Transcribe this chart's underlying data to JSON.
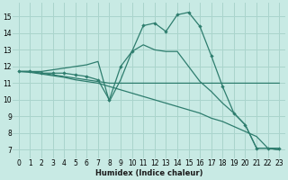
{
  "xlabel": "Humidex (Indice chaleur)",
  "xlim": [
    -0.5,
    23.5
  ],
  "ylim": [
    6.5,
    15.8
  ],
  "yticks": [
    7,
    8,
    9,
    10,
    11,
    12,
    13,
    14,
    15
  ],
  "xticks": [
    0,
    1,
    2,
    3,
    4,
    5,
    6,
    7,
    8,
    9,
    10,
    11,
    12,
    13,
    14,
    15,
    16,
    17,
    18,
    19,
    20,
    21,
    22,
    23
  ],
  "bg_color": "#c8eae4",
  "grid_color": "#aad4cc",
  "line_color": "#2e7d6e",
  "lines": [
    {
      "x": [
        0,
        1,
        2,
        3,
        4,
        5,
        6,
        7,
        8,
        9,
        10,
        11,
        12,
        13,
        14,
        15,
        16,
        17,
        18,
        19,
        20,
        21,
        22,
        23
      ],
      "y": [
        11.7,
        11.7,
        11.6,
        11.6,
        11.6,
        11.5,
        11.4,
        11.2,
        10.0,
        12.0,
        12.9,
        14.45,
        14.6,
        14.1,
        15.1,
        15.25,
        14.4,
        12.65,
        10.8,
        9.2,
        8.5,
        7.1,
        7.1,
        7.1
      ],
      "marker": true
    },
    {
      "x": [
        0,
        1,
        2,
        3,
        4,
        5,
        6,
        7,
        8,
        9,
        10,
        11,
        12,
        13,
        14,
        15,
        16,
        17,
        18,
        19,
        20,
        21,
        22,
        23
      ],
      "y": [
        11.7,
        11.7,
        11.6,
        11.5,
        11.4,
        11.3,
        11.2,
        11.1,
        11.0,
        11.0,
        11.0,
        11.0,
        11.0,
        11.0,
        11.0,
        11.0,
        11.0,
        11.0,
        11.0,
        11.0,
        11.0,
        11.0,
        11.0,
        11.0
      ],
      "marker": false
    },
    {
      "x": [
        0,
        1,
        2,
        3,
        4,
        5,
        6,
        7,
        8,
        9,
        10,
        11,
        12,
        13,
        14,
        15,
        16,
        17,
        18,
        19,
        20,
        21,
        22,
        23
      ],
      "y": [
        11.7,
        11.65,
        11.55,
        11.45,
        11.35,
        11.2,
        11.1,
        11.0,
        10.8,
        10.6,
        10.4,
        10.2,
        10.0,
        9.8,
        9.6,
        9.4,
        9.2,
        8.9,
        8.7,
        8.4,
        8.1,
        7.8,
        7.1,
        7.0
      ],
      "marker": false
    },
    {
      "x": [
        0,
        1,
        2,
        3,
        4,
        5,
        6,
        7,
        8,
        9,
        10,
        11,
        12,
        13,
        14,
        15,
        16,
        17,
        18,
        19,
        20,
        21,
        22,
        23
      ],
      "y": [
        11.7,
        11.7,
        11.7,
        11.8,
        11.9,
        12.0,
        12.1,
        12.3,
        9.9,
        11.2,
        12.9,
        13.3,
        13.0,
        12.9,
        12.9,
        12.0,
        11.1,
        10.5,
        9.8,
        9.2,
        8.5,
        7.1,
        7.1,
        7.0
      ],
      "marker": false
    }
  ]
}
